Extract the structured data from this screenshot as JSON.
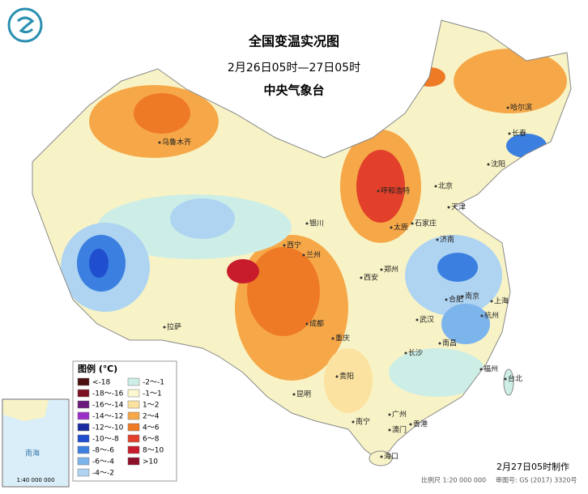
{
  "header": {
    "title": "全国变温实况图",
    "subtitle": "2月26日05时—27日05时",
    "agency": "中央气象台"
  },
  "legend": {
    "title": "图例 (℃)",
    "items": [
      {
        "label": "<-18",
        "color": "#4a0e0e"
      },
      {
        "label": "-18～-16",
        "color": "#7a1020"
      },
      {
        "label": "-16～-14",
        "color": "#6a1a7a"
      },
      {
        "label": "-14～-12",
        "color": "#9a30c8"
      },
      {
        "label": "-12～-10",
        "color": "#1a2aa0"
      },
      {
        "label": "-10～-8",
        "color": "#1f4fcf"
      },
      {
        "label": "-8～-6",
        "color": "#3b7fe0"
      },
      {
        "label": "-6～-4",
        "color": "#7cb4ec"
      },
      {
        "label": "-4～-2",
        "color": "#aed4f2"
      },
      {
        "label": "-2～-1",
        "color": "#cdeee6"
      },
      {
        "label": "-1～1",
        "color": "#fbf8d0"
      },
      {
        "label": "1～2",
        "color": "#fbe2a0"
      },
      {
        "label": "2～4",
        "color": "#f6a848"
      },
      {
        "label": "4～6",
        "color": "#ef7a26"
      },
      {
        "label": "6～8",
        "color": "#e2402a"
      },
      {
        "label": "8～10",
        "color": "#c81c2c"
      },
      {
        "label": ">10",
        "color": "#8e0f2a"
      }
    ]
  },
  "cities": [
    "乌鲁木齐",
    "哈尔滨",
    "长春",
    "沈阳",
    "北京",
    "天津",
    "呼和浩特",
    "石家庄",
    "太原",
    "济南",
    "银川",
    "西宁",
    "兰州",
    "郑州",
    "西安",
    "合肥",
    "南京",
    "上海",
    "杭州",
    "武汉",
    "成都",
    "重庆",
    "长沙",
    "南昌",
    "拉萨",
    "贵阳",
    "昆明",
    "福州",
    "台北",
    "南宁",
    "广州",
    "香港",
    "澳门",
    "海口"
  ],
  "inset": {
    "label": "南海",
    "scale": "1:40 000 000"
  },
  "footer": {
    "made": "2月27日05时制作",
    "scale": "比例尺 1:20 000 000",
    "approval": "审图号: GS (2017) 3320号"
  }
}
